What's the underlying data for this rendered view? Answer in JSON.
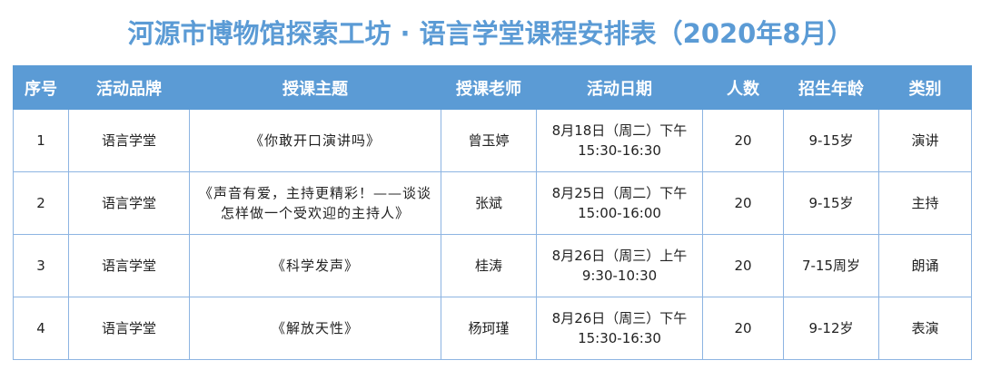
{
  "title": "河源市博物馆探索工坊 · 语言学堂课程安排表（2020年8月）",
  "headers": [
    "序号",
    "活动品牌",
    "授课主题",
    "授课老师",
    "活动日期",
    "人数",
    "招生年龄",
    "类别"
  ],
  "rows": [
    {
      "no": "1",
      "brand": "语言学堂",
      "topic": "《你敢开口演讲吗》",
      "teacher": "曾玉婷",
      "date1": "8月18日（周二）下午",
      "date2": "15:30-16:30",
      "count": "20",
      "age": "9-15岁",
      "type": "演讲"
    },
    {
      "no": "2",
      "brand": "语言学堂",
      "topic": "《声音有爱，主持更精彩！——谈谈怎样做一个受欢迎的主持人》",
      "teacher": "张斌",
      "date1": "8月25日（周二）下午",
      "date2": "15:00-16:00",
      "count": "20",
      "age": "9-15岁",
      "type": "主持"
    },
    {
      "no": "3",
      "brand": "语言学堂",
      "topic": "《科学发声》",
      "teacher": "桂涛",
      "date1": "8月26日（周三）上午",
      "date2": "9:30-10:30",
      "count": "20",
      "age": "7-15周岁",
      "type": "朗诵"
    },
    {
      "no": "4",
      "brand": "语言学堂",
      "topic": "《解放天性》",
      "teacher": "杨珂瑾",
      "date1": "8月26日（周三）下午",
      "date2": "15:30-16:30",
      "count": "20",
      "age": "9-12岁",
      "type": "表演"
    }
  ]
}
